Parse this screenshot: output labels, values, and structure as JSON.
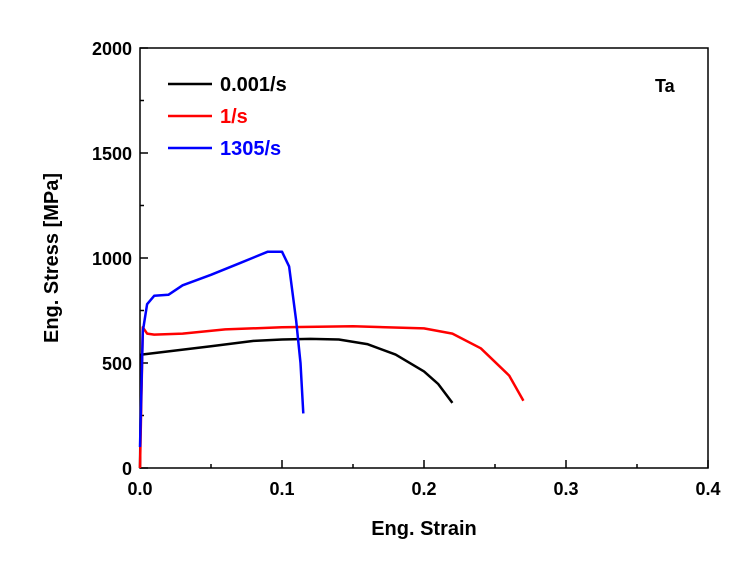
{
  "chart_data": {
    "type": "line",
    "title": "",
    "xlabel": "Eng. Strain",
    "ylabel": "Eng. Stress [MPa]",
    "xlim": [
      0,
      0.4
    ],
    "ylim": [
      0,
      2000
    ],
    "xticks": [
      "0.0",
      "0.1",
      "0.2",
      "0.3",
      "0.4"
    ],
    "yticks": [
      "0",
      "500",
      "1000",
      "1500",
      "2000"
    ],
    "grid": false,
    "legend_position": "top-left",
    "annotation": "Ta",
    "series": [
      {
        "name": "0.001/s",
        "color": "#000000",
        "x": [
          0,
          0.001,
          0.02,
          0.05,
          0.08,
          0.1,
          0.12,
          0.14,
          0.16,
          0.18,
          0.2,
          0.21,
          0.22
        ],
        "y": [
          0,
          540,
          555,
          580,
          605,
          612,
          615,
          612,
          590,
          540,
          460,
          400,
          310
        ]
      },
      {
        "name": "1/s",
        "color": "#ff0000",
        "x": [
          0,
          0.002,
          0.005,
          0.01,
          0.03,
          0.06,
          0.1,
          0.15,
          0.2,
          0.22,
          0.24,
          0.26,
          0.27
        ],
        "y": [
          0,
          670,
          640,
          635,
          640,
          660,
          670,
          675,
          665,
          640,
          570,
          440,
          320
        ]
      },
      {
        "name": "1305/s",
        "color": "#0000ff",
        "x": [
          0,
          0.002,
          0.005,
          0.01,
          0.02,
          0.03,
          0.05,
          0.07,
          0.09,
          0.1,
          0.105,
          0.11,
          0.113,
          0.115
        ],
        "y": [
          100,
          650,
          780,
          820,
          825,
          870,
          920,
          975,
          1030,
          1030,
          960,
          700,
          500,
          260
        ]
      }
    ]
  }
}
